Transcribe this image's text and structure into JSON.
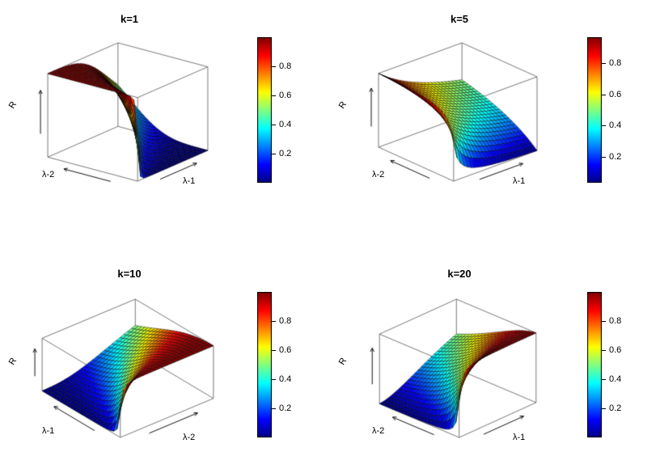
{
  "figure": {
    "background": "#ffffff",
    "description": "2x2 grid of 3D perspective surface plots of reliability R versus rate parameters, each with a jet colorbar"
  },
  "chart_data": {
    "type": "surface",
    "layout": "2x2 grid, jet colormap colorbars at right of each panel, legend off, white background",
    "colormap": "jet",
    "model_hint": "R ~ lambda2^s / (lambda1^s + lambda2^s), steepness s grows with shape parameter k",
    "panels": [
      {
        "title": "k=1",
        "k": 1,
        "axis": {
          "left": "λ-2",
          "right": "λ-1",
          "z": "R"
        },
        "lambda_range": [
          0.1,
          3.0
        ],
        "z_range": [
          0,
          1
        ],
        "sharpness": 4,
        "swap_axes": false,
        "view": {
          "theta": 52,
          "phi": 20,
          "zscale": 0.78
        },
        "grid_n": 24,
        "colorbar": {
          "ticks": [
            "0.2",
            "0.4",
            "0.6",
            "0.8"
          ]
        },
        "lambda_values": [
          0.1,
          0.83,
          1.55,
          2.28,
          3.0
        ],
        "z_grid_sample": [
          [
            0.5,
            1.0,
            1.0,
            1.0,
            1.0
          ],
          [
            0.0,
            0.5,
            0.93,
            0.98,
            0.99
          ],
          [
            0.0,
            0.07,
            0.5,
            0.82,
            0.93
          ],
          [
            0.0,
            0.02,
            0.18,
            0.5,
            0.75
          ],
          [
            0.0,
            0.01,
            0.07,
            0.25,
            0.5
          ]
        ]
      },
      {
        "title": "k=5",
        "k": 5,
        "axis": {
          "left": "λ-2",
          "right": "λ-1",
          "z": "R"
        },
        "lambda_range": [
          0.1,
          3.0
        ],
        "z_range": [
          0,
          1
        ],
        "sharpness": 1,
        "swap_axes": false,
        "view": {
          "theta": 42,
          "phi": 24,
          "zscale": 0.72
        },
        "grid_n": 24,
        "colorbar": {
          "ticks": [
            "0.2",
            "0.4",
            "0.6",
            "0.8"
          ]
        },
        "lambda_values": [
          0.1,
          0.83,
          1.55,
          2.28,
          3.0
        ],
        "z_grid_sample": [
          [
            0.5,
            0.89,
            0.94,
            0.96,
            0.97
          ],
          [
            0.11,
            0.5,
            0.65,
            0.73,
            0.78
          ],
          [
            0.06,
            0.35,
            0.5,
            0.6,
            0.66
          ],
          [
            0.04,
            0.27,
            0.4,
            0.5,
            0.57
          ],
          [
            0.03,
            0.22,
            0.34,
            0.43,
            0.5
          ]
        ]
      },
      {
        "title": "k=10",
        "k": 10,
        "axis": {
          "left": "λ-1",
          "right": "λ-2",
          "z": "R"
        },
        "lambda_range": [
          0.1,
          3.0
        ],
        "z_range": [
          0,
          1
        ],
        "sharpness": 2.5,
        "swap_axes": true,
        "view": {
          "theta": 40,
          "phi": 30,
          "zscale": 0.5
        },
        "grid_n": 24,
        "colorbar": {
          "ticks": [
            "0.2",
            "0.4",
            "0.6",
            "0.8"
          ]
        },
        "lambda_values": [
          0.1,
          0.83,
          1.55,
          2.28,
          3.0
        ],
        "z_grid_sample": [
          [
            0.5,
            0.99,
            1.0,
            1.0,
            1.0
          ],
          [
            0.01,
            0.5,
            0.83,
            0.93,
            0.96
          ],
          [
            0.0,
            0.17,
            0.5,
            0.72,
            0.84
          ],
          [
            0.0,
            0.07,
            0.28,
            0.5,
            0.67
          ],
          [
            0.0,
            0.04,
            0.16,
            0.33,
            0.5
          ]
        ]
      },
      {
        "title": "k=20",
        "k": 20,
        "axis": {
          "left": "λ-2",
          "right": "λ-1",
          "z": "R"
        },
        "lambda_range": [
          0.1,
          3.0
        ],
        "z_range": [
          0,
          1
        ],
        "sharpness": 1.8,
        "swap_axes": true,
        "view": {
          "theta": 46,
          "phi": 26,
          "zscale": 0.7
        },
        "grid_n": 24,
        "colorbar": {
          "ticks": [
            "0.2",
            "0.4",
            "0.6",
            "0.8"
          ]
        },
        "lambda_values": [
          0.1,
          0.83,
          1.55,
          2.28,
          3.0
        ],
        "z_grid_sample": [
          [
            0.5,
            0.98,
            0.99,
            1.0,
            1.0
          ],
          [
            0.02,
            0.5,
            0.76,
            0.86,
            0.91
          ],
          [
            0.01,
            0.24,
            0.5,
            0.67,
            0.77
          ],
          [
            0.0,
            0.14,
            0.33,
            0.5,
            0.62
          ],
          [
            0.0,
            0.09,
            0.23,
            0.38,
            0.5
          ]
        ]
      }
    ]
  }
}
